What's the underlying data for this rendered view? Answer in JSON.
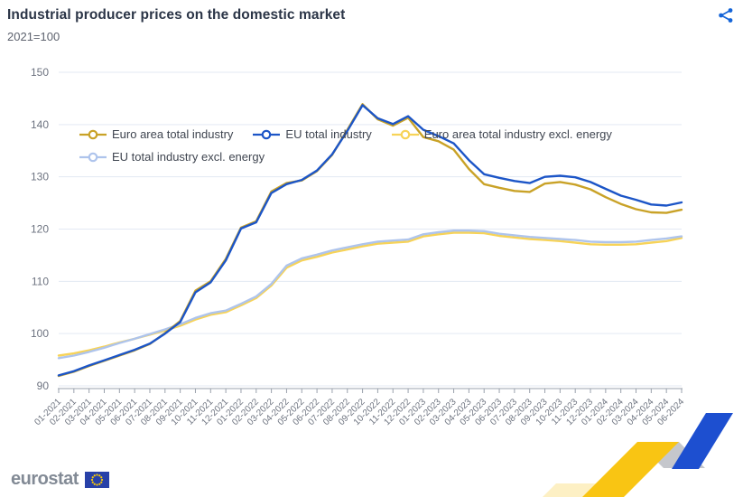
{
  "header": {
    "title": "Industrial producer prices on the domestic market",
    "subtitle": "2021=100"
  },
  "icons": {
    "share": "share-icon"
  },
  "footer": {
    "logo_text": "eurostat"
  },
  "accent_colors": {
    "share_icon": "#1565d8",
    "flag_blue": "#2841a8",
    "flag_stars": "#ffcc00"
  },
  "chart_data": {
    "type": "line",
    "title": "Industrial producer prices on the domestic market",
    "subtitle": "2021=100",
    "legend_position": "top",
    "grid": true,
    "ylim": [
      90,
      150
    ],
    "yticks": [
      90,
      100,
      110,
      120,
      130,
      140,
      150
    ],
    "categories": [
      "01-2021",
      "02-2021",
      "03-2021",
      "04-2021",
      "05-2021",
      "06-2021",
      "07-2021",
      "08-2021",
      "09-2021",
      "10-2021",
      "11-2021",
      "12-2021",
      "01-2022",
      "02-2022",
      "03-2022",
      "04-2022",
      "05-2022",
      "06-2022",
      "07-2022",
      "08-2022",
      "09-2022",
      "10-2022",
      "11-2022",
      "12-2022",
      "01-2023",
      "02-2023",
      "03-2023",
      "04-2023",
      "05-2023",
      "06-2023",
      "07-2023",
      "08-2023",
      "09-2023",
      "10-2023",
      "11-2023",
      "12-2023",
      "01-2024",
      "02-2024",
      "03-2024",
      "04-2024",
      "05-2024",
      "06-2024"
    ],
    "z_order": [
      2,
      3,
      0,
      1
    ],
    "series": [
      {
        "name": "Euro area total industry",
        "color": "#c9a227",
        "values": [
          91.9,
          92.7,
          93.8,
          94.8,
          95.8,
          96.8,
          98.0,
          100.1,
          102.4,
          108.2,
          110.0,
          114.3,
          120.3,
          121.5,
          127.2,
          128.8,
          129.3,
          131.1,
          134.2,
          139.0,
          143.9,
          141.0,
          139.8,
          141.3,
          137.6,
          136.8,
          135.2,
          131.5,
          128.6,
          127.9,
          127.3,
          127.1,
          128.7,
          129.0,
          128.5,
          127.6,
          126.1,
          124.8,
          123.8,
          123.2,
          123.1,
          123.7
        ]
      },
      {
        "name": "EU total industry",
        "color": "#1c55c7",
        "values": [
          92.0,
          92.8,
          93.9,
          94.9,
          95.9,
          96.9,
          98.1,
          100.0,
          102.2,
          107.9,
          109.8,
          114.0,
          120.1,
          121.3,
          126.9,
          128.6,
          129.4,
          131.2,
          134.3,
          138.8,
          143.7,
          141.2,
          140.1,
          141.6,
          139.0,
          137.8,
          136.4,
          133.2,
          130.5,
          129.8,
          129.2,
          128.8,
          130.0,
          130.2,
          129.9,
          129.0,
          127.7,
          126.4,
          125.6,
          124.7,
          124.5,
          125.1
        ]
      },
      {
        "name": "Euro area total industry excl. energy",
        "color": "#f7d358",
        "values": [
          95.8,
          96.2,
          96.8,
          97.5,
          98.3,
          99.0,
          99.8,
          100.6,
          101.5,
          102.7,
          103.6,
          104.1,
          105.4,
          106.8,
          109.2,
          112.6,
          114.0,
          114.7,
          115.5,
          116.1,
          116.7,
          117.2,
          117.4,
          117.6,
          118.6,
          119.0,
          119.3,
          119.3,
          119.2,
          118.7,
          118.4,
          118.1,
          117.9,
          117.7,
          117.4,
          117.1,
          117.0,
          117.0,
          117.1,
          117.4,
          117.7,
          118.3
        ]
      },
      {
        "name": "EU total industry excl. energy",
        "color": "#aec4ec",
        "values": [
          95.3,
          95.8,
          96.5,
          97.3,
          98.2,
          99.0,
          99.9,
          100.8,
          101.8,
          103.0,
          103.9,
          104.4,
          105.7,
          107.1,
          109.5,
          113.0,
          114.4,
          115.1,
          115.9,
          116.5,
          117.1,
          117.6,
          117.8,
          118.0,
          119.0,
          119.4,
          119.7,
          119.7,
          119.6,
          119.1,
          118.8,
          118.5,
          118.3,
          118.1,
          117.9,
          117.6,
          117.5,
          117.5,
          117.6,
          117.9,
          118.2,
          118.6
        ]
      }
    ]
  }
}
